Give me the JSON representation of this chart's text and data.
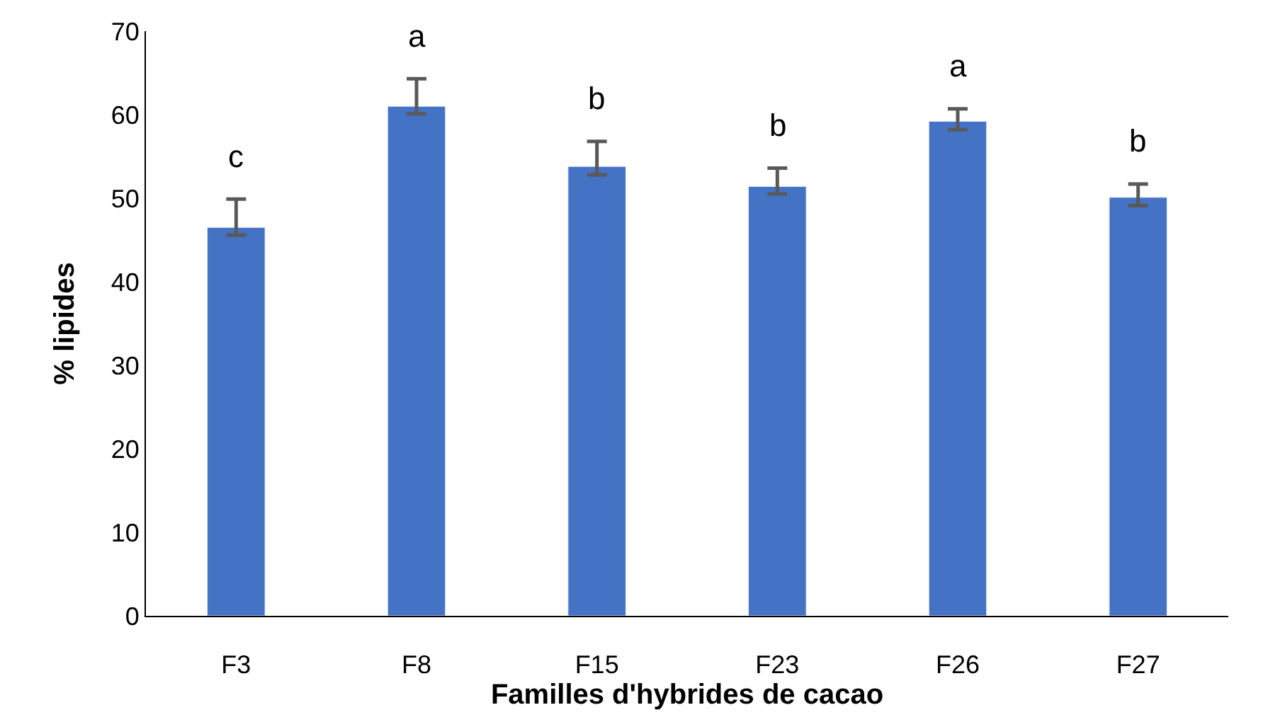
{
  "chart_data": {
    "type": "bar",
    "xlabel": "Familles d'hybrides de cacao",
    "ylabel": "% lipides",
    "categories": [
      "F3",
      "F8",
      "F15",
      "F23",
      "F26",
      "F27"
    ],
    "series": [
      {
        "color": "#4472c4",
        "values": [
          46.5,
          61.0,
          53.8,
          51.4,
          59.2,
          50.1
        ],
        "errors": [
          [
            45.6,
            49.9
          ],
          [
            60.1,
            64.3
          ],
          [
            52.8,
            56.8
          ],
          [
            50.5,
            53.6
          ],
          [
            58.2,
            60.7
          ],
          [
            49.1,
            51.7
          ]
        ],
        "value_labels": [
          "c",
          "a",
          "b",
          "b",
          "a",
          "b"
        ]
      }
    ],
    "ylim": [
      0,
      70
    ],
    "yticks": [
      0,
      10,
      20,
      30,
      40,
      50,
      60,
      70
    ]
  }
}
